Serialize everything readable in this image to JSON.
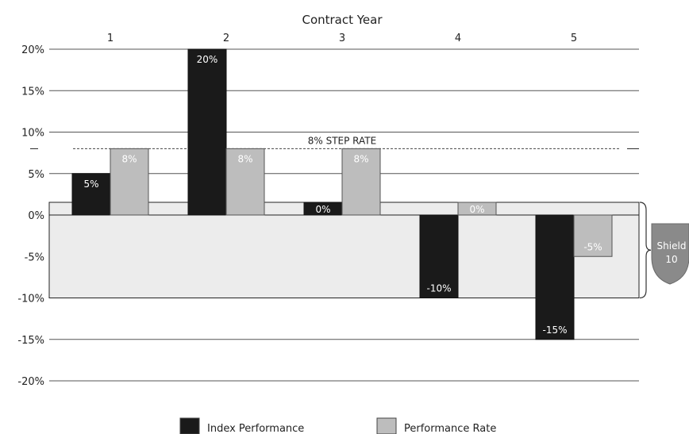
{
  "chart_data": {
    "type": "bar",
    "title": "Contract Year",
    "categories": [
      "1",
      "2",
      "3",
      "4",
      "5"
    ],
    "series": [
      {
        "name": "Index Performance",
        "values": [
          5,
          20,
          0,
          -10,
          -15
        ],
        "labels": [
          "5%",
          "20%",
          "0%",
          "-10%",
          "-15%"
        ],
        "color": "#1a1a1a"
      },
      {
        "name": "Performance Rate",
        "values": [
          8,
          8,
          8,
          0,
          -5
        ],
        "labels": [
          "8%",
          "8%",
          "8%",
          "0%",
          "-5%"
        ],
        "color": "#bdbdbd"
      }
    ],
    "y_ticks": [
      20,
      15,
      10,
      5,
      0,
      -5,
      -10,
      -15,
      -20
    ],
    "y_tick_labels": [
      "20%",
      "15%",
      "10%",
      "5%",
      "0%",
      "-5%",
      "-10%",
      "-15%",
      "-20%"
    ],
    "ylim": [
      -20,
      20
    ],
    "grid": true,
    "reference_line": {
      "value": 8,
      "label": "8% STEP RATE"
    },
    "shield": {
      "from": 0,
      "to": -10,
      "label_line1": "Shield",
      "label_line2": "10"
    },
    "legend_position": "bottom-center",
    "colors": {
      "bar_dark": "#1a1a1a",
      "bar_light": "#bdbdbd",
      "shield_fill": "#ececec",
      "grid": "#555555"
    }
  }
}
